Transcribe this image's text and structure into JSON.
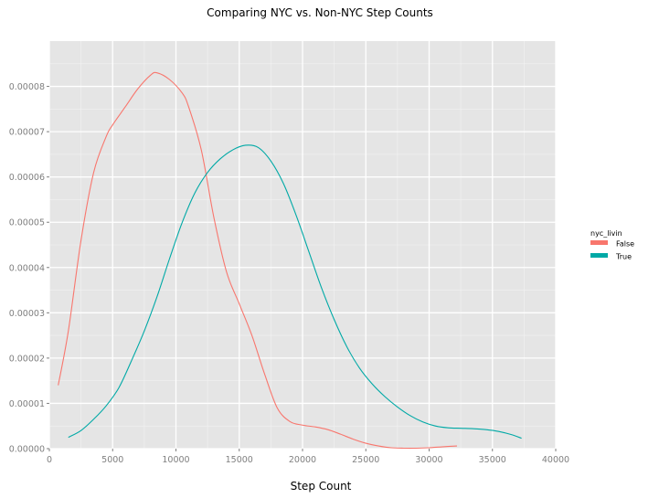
{
  "chart_data": {
    "type": "line",
    "title": "Comparing NYC vs. Non-NYC Step Counts",
    "xlabel": "Step Count",
    "ylabel": "",
    "xlim": [
      0,
      40000
    ],
    "ylim": [
      0,
      9e-05
    ],
    "xticks": [
      "0",
      "5000",
      "10000",
      "15000",
      "20000",
      "25000",
      "30000",
      "35000",
      "40000"
    ],
    "yticks": [
      "0.00000",
      "0.00001",
      "0.00002",
      "0.00003",
      "0.00004",
      "0.00005",
      "0.00006",
      "0.00007",
      "0.00008"
    ],
    "grid": true,
    "legend": {
      "title": "nyc_livin",
      "position": "right"
    },
    "colors": {
      "False": "#F8766D",
      "True": "#00A9A6",
      "panel": "#E5E5E5",
      "grid": "#FFFFFF"
    },
    "series": [
      {
        "name": "False",
        "x": [
          700,
          1500,
          2500,
          3500,
          4500,
          5000,
          6000,
          7000,
          8000,
          8500,
          9500,
          10500,
          11000,
          12000,
          13000,
          14000,
          15000,
          16000,
          17000,
          18000,
          19000,
          20000,
          21000,
          22000,
          23000,
          24000,
          25000,
          26000,
          27000,
          28000,
          29000,
          30000,
          31000,
          32200
        ],
        "y": [
          1.4e-05,
          2.6e-05,
          4.6e-05,
          6.1e-05,
          6.9e-05,
          7.15e-05,
          7.55e-05,
          7.95e-05,
          8.25e-05,
          8.3e-05,
          8.15e-05,
          7.85e-05,
          7.55e-05,
          6.6e-05,
          5.1e-05,
          3.9e-05,
          3.2e-05,
          2.5e-05,
          1.65e-05,
          9e-06,
          6e-06,
          5.2e-06,
          4.8e-06,
          4.2e-06,
          3.2e-06,
          2.1e-06,
          1.2e-06,
          6e-07,
          2e-07,
          1e-07,
          1e-07,
          2e-07,
          4e-07,
          6e-07
        ]
      },
      {
        "name": "True",
        "x": [
          1500,
          2500,
          3500,
          4500,
          5500,
          6500,
          7500,
          8500,
          9500,
          10500,
          11500,
          12500,
          13500,
          14500,
          15500,
          16500,
          17500,
          18500,
          19500,
          20500,
          21500,
          22500,
          23500,
          24500,
          25500,
          26500,
          27500,
          28500,
          29500,
          30500,
          31500,
          32500,
          33500,
          34500,
          35500,
          36500,
          37300
        ],
        "y": [
          2.5e-06,
          4e-06,
          6.5e-06,
          9.5e-06,
          1.35e-05,
          1.95e-05,
          2.6e-05,
          3.35e-05,
          4.2e-05,
          5e-05,
          5.65e-05,
          6.1e-05,
          6.4e-05,
          6.6e-05,
          6.7e-05,
          6.65e-05,
          6.35e-05,
          5.85e-05,
          5.15e-05,
          4.35e-05,
          3.55e-05,
          2.85e-05,
          2.25e-05,
          1.78e-05,
          1.43e-05,
          1.15e-05,
          9.2e-06,
          7.3e-06,
          5.9e-06,
          5e-06,
          4.6e-06,
          4.5e-06,
          4.4e-06,
          4.2e-06,
          3.8e-06,
          3.1e-06,
          2.3e-06
        ]
      }
    ]
  }
}
